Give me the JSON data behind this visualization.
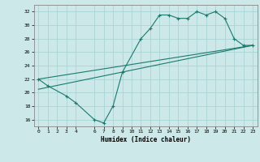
{
  "line1_x": [
    0,
    1,
    3,
    4,
    6,
    7,
    8,
    9,
    11,
    12,
    13,
    14,
    15,
    16,
    17,
    18,
    19,
    20,
    21,
    22,
    23
  ],
  "line1_y": [
    22,
    21,
    19.5,
    18.5,
    16,
    15.5,
    18,
    23,
    28,
    29.5,
    31.5,
    31.5,
    31,
    31,
    32,
    31.5,
    32,
    31,
    28,
    27,
    27
  ],
  "line2_x": [
    0,
    23
  ],
  "line2_y": [
    22.0,
    27.0
  ],
  "line3_x": [
    0,
    23
  ],
  "line3_y": [
    20.5,
    27.0
  ],
  "line_color": "#1a7a6e",
  "bg_color": "#cce8e8",
  "grid_color": "#aad4d4",
  "xlabel": "Humidex (Indice chaleur)",
  "xlim": [
    -0.5,
    23.5
  ],
  "ylim": [
    15,
    33
  ],
  "yticks": [
    16,
    18,
    20,
    22,
    24,
    26,
    28,
    30,
    32
  ],
  "xticks": [
    0,
    1,
    2,
    3,
    4,
    6,
    7,
    8,
    9,
    10,
    11,
    12,
    13,
    14,
    15,
    16,
    17,
    18,
    19,
    20,
    21,
    22,
    23
  ],
  "xtick_labels": [
    "0",
    "1",
    "2",
    "3",
    "4",
    "6",
    "7",
    "8",
    "9",
    "10",
    "11",
    "12",
    "13",
    "14",
    "15",
    "16",
    "17",
    "18",
    "19",
    "20",
    "21",
    "22",
    "23"
  ]
}
